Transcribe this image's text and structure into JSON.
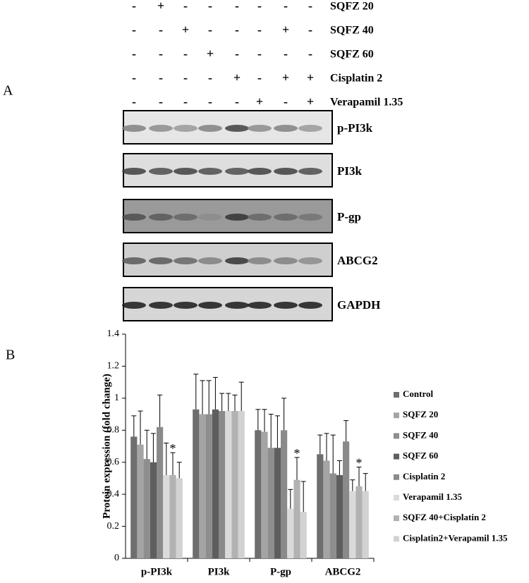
{
  "panels": {
    "a": "A",
    "b": "B"
  },
  "treatments": [
    {
      "name": "SQFZ 20",
      "signs": [
        "-",
        "+",
        "-",
        "-",
        "-",
        "-",
        "-",
        "-"
      ]
    },
    {
      "name": "SQFZ 40",
      "signs": [
        "-",
        "-",
        "+",
        "-",
        "-",
        "-",
        "+",
        "-"
      ]
    },
    {
      "name": "SQFZ 60",
      "signs": [
        "-",
        "-",
        "-",
        "+",
        "-",
        "-",
        "-",
        "-"
      ]
    },
    {
      "name": "Cisplatin 2",
      "signs": [
        "-",
        "-",
        "-",
        "-",
        "+",
        "-",
        "+",
        "+"
      ]
    },
    {
      "name": "Verapamil 1.35",
      "signs": [
        "-",
        "-",
        "-",
        "-",
        "-",
        "+",
        "-",
        "+"
      ]
    }
  ],
  "blots": [
    "p-PI3k",
    "PI3k",
    "P-gp",
    "ABCG2",
    "GAPDH"
  ],
  "chart_data": {
    "type": "bar",
    "ylabel": "Protein expression (fold change)",
    "categories": [
      "p-PI3k",
      "PI3k",
      "P-gp",
      "ABCG2"
    ],
    "ylim": [
      0,
      1.4
    ],
    "yticks": [
      0,
      0.2,
      0.4,
      0.6,
      0.8,
      1,
      1.2,
      1.4
    ],
    "series": [
      {
        "name": "Control",
        "color": "#6e6e6e",
        "values": [
          0.76,
          0.93,
          0.8,
          0.65
        ],
        "errors": [
          0.13,
          0.22,
          0.13,
          0.12
        ]
      },
      {
        "name": "SQFZ 20",
        "color": "#a4a4a4",
        "values": [
          0.71,
          0.9,
          0.79,
          0.61
        ],
        "errors": [
          0.21,
          0.21,
          0.14,
          0.17
        ]
      },
      {
        "name": "SQFZ 40",
        "color": "#8e8e8e",
        "values": [
          0.62,
          0.9,
          0.69,
          0.53
        ],
        "errors": [
          0.18,
          0.21,
          0.21,
          0.24
        ]
      },
      {
        "name": "SQFZ 60",
        "color": "#5e5e5e",
        "values": [
          0.6,
          0.93,
          0.69,
          0.52
        ],
        "errors": [
          0.18,
          0.2,
          0.2,
          0.09
        ]
      },
      {
        "name": "Cisplatin 2",
        "color": "#8a8a8a",
        "values": [
          0.82,
          0.92,
          0.8,
          0.73
        ],
        "errors": [
          0.2,
          0.11,
          0.2,
          0.13
        ]
      },
      {
        "name": "Verapamil 1.35",
        "color": "#dadada",
        "values": [
          0.52,
          0.92,
          0.31,
          0.42
        ],
        "errors": [
          0.2,
          0.11,
          0.12,
          0.07
        ]
      },
      {
        "name": "SQFZ 40+Cisplatin 2",
        "color": "#b2b2b2",
        "values": [
          0.52,
          0.92,
          0.49,
          0.45
        ],
        "errors": [
          0.14,
          0.1,
          0.14,
          0.12
        ]
      },
      {
        "name": "Cisplatin2+Verapamil 1.35",
        "color": "#d2d2d2",
        "values": [
          0.5,
          0.92,
          0.29,
          0.42
        ],
        "errors": [
          0.1,
          0.18,
          0.19,
          0.11
        ]
      }
    ],
    "annotations": [
      {
        "text": "*",
        "category_index": 0,
        "series_index": 6
      },
      {
        "text": "*",
        "category_index": 2,
        "series_index": 6
      },
      {
        "text": "*",
        "category_index": 3,
        "series_index": 6
      }
    ]
  }
}
